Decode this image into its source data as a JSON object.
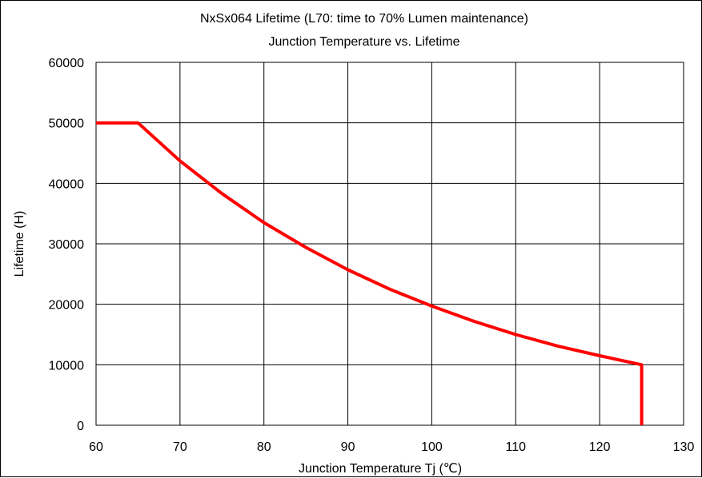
{
  "chart_data": {
    "type": "line",
    "title": "NxSx064 Lifetime (L70: time to 70% Lumen maintenance)",
    "subtitle": "Junction Temperature vs. Lifetime",
    "xlabel": "Junction Temperature Tj (℃)",
    "ylabel": "Lifetime (H)",
    "xlim": [
      60,
      130
    ],
    "ylim": [
      0,
      60000
    ],
    "xticks": [
      "60",
      "70",
      "80",
      "90",
      "100",
      "110",
      "120",
      "130"
    ],
    "yticks": [
      "0",
      "10000",
      "20000",
      "30000",
      "40000",
      "50000",
      "60000"
    ],
    "grid": true,
    "legend": "none",
    "series": [
      {
        "color": "#ff0000",
        "x": [
          60,
          65,
          70,
          75,
          80,
          85,
          90,
          95,
          100,
          105,
          110,
          115,
          120,
          125,
          125
        ],
        "y": [
          50000,
          50000,
          43700,
          38300,
          33500,
          29400,
          25700,
          22500,
          19700,
          17200,
          15000,
          13100,
          11500,
          10000,
          0
        ]
      }
    ]
  }
}
